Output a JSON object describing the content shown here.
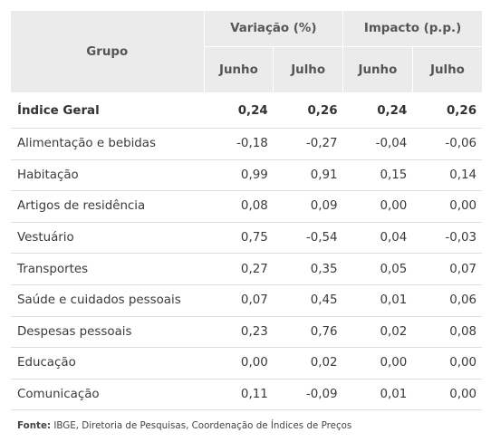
{
  "table": {
    "header": {
      "grupo": "Grupo",
      "variacao": "Variação (%)",
      "impacto": "Impacto (p.p.)",
      "junho_1": "Junho",
      "julho_1": "Julho",
      "junho_2": "Junho",
      "julho_2": "Julho"
    },
    "rows": [
      {
        "grupo": "Índice Geral",
        "var_jun": "0,24",
        "var_jul": "0,26",
        "imp_jun": "0,24",
        "imp_jul": "0,26"
      },
      {
        "grupo": "Alimentação e bebidas",
        "var_jun": "-0,18",
        "var_jul": "-0,27",
        "imp_jun": "-0,04",
        "imp_jul": "-0,06"
      },
      {
        "grupo": "Habitação",
        "var_jun": "0,99",
        "var_jul": "0,91",
        "imp_jun": "0,15",
        "imp_jul": "0,14"
      },
      {
        "grupo": "Artigos de residência",
        "var_jun": "0,08",
        "var_jul": "0,09",
        "imp_jun": "0,00",
        "imp_jul": "0,00"
      },
      {
        "grupo": "Vestuário",
        "var_jun": "0,75",
        "var_jul": "-0,54",
        "imp_jun": "0,04",
        "imp_jul": "-0,03"
      },
      {
        "grupo": "Transportes",
        "var_jun": "0,27",
        "var_jul": "0,35",
        "imp_jun": "0,05",
        "imp_jul": "0,07"
      },
      {
        "grupo": "Saúde e cuidados pessoais",
        "var_jun": "0,07",
        "var_jul": "0,45",
        "imp_jun": "0,01",
        "imp_jul": "0,06"
      },
      {
        "grupo": "Despesas pessoais",
        "var_jun": "0,23",
        "var_jul": "0,76",
        "imp_jun": "0,02",
        "imp_jul": "0,08"
      },
      {
        "grupo": "Educação",
        "var_jun": "0,00",
        "var_jul": "0,02",
        "imp_jun": "0,00",
        "imp_jul": "0,00"
      },
      {
        "grupo": "Comunicação",
        "var_jun": "0,11",
        "var_jul": "-0,09",
        "imp_jun": "0,01",
        "imp_jul": "0,00"
      }
    ]
  },
  "source": {
    "label": "Fonte:",
    "text": " IBGE, Diretoria de Pesquisas, Coordenação de Índices de Preços"
  },
  "chart_data": {
    "type": "table",
    "columns": [
      "Grupo",
      "Variação (%) Junho",
      "Variação (%) Julho",
      "Impacto (p.p.) Junho",
      "Impacto (p.p.) Julho"
    ],
    "rows": [
      [
        "Índice Geral",
        0.24,
        0.26,
        0.24,
        0.26
      ],
      [
        "Alimentação e bebidas",
        -0.18,
        -0.27,
        -0.04,
        -0.06
      ],
      [
        "Habitação",
        0.99,
        0.91,
        0.15,
        0.14
      ],
      [
        "Artigos de residência",
        0.08,
        0.09,
        0.0,
        0.0
      ],
      [
        "Vestuário",
        0.75,
        -0.54,
        0.04,
        -0.03
      ],
      [
        "Transportes",
        0.27,
        0.35,
        0.05,
        0.07
      ],
      [
        "Saúde e cuidados pessoais",
        0.07,
        0.45,
        0.01,
        0.06
      ],
      [
        "Despesas pessoais",
        0.23,
        0.76,
        0.02,
        0.08
      ],
      [
        "Educação",
        0.0,
        0.02,
        0.0,
        0.0
      ],
      [
        "Comunicação",
        0.11,
        -0.09,
        0.01,
        0.0
      ]
    ]
  }
}
